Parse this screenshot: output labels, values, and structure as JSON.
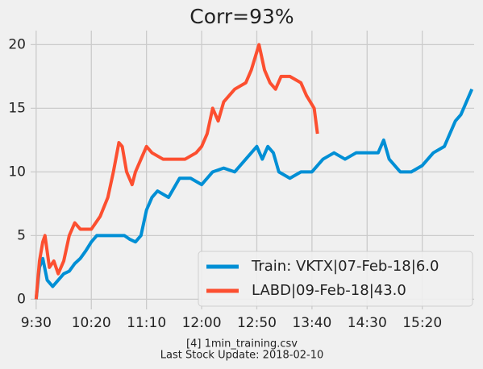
{
  "chart_data": {
    "type": "line",
    "title": "Corr=93%",
    "annotations": [
      "[4] 1min_training.csv",
      "Last Stock Update: 2018-02-10"
    ],
    "xlim": [
      565,
      967
    ],
    "ylim": [
      -0.8,
      21.1
    ],
    "xticks": [
      {
        "value": 570,
        "label": "9:30"
      },
      {
        "value": 620,
        "label": "10:20"
      },
      {
        "value": 670,
        "label": "11:10"
      },
      {
        "value": 720,
        "label": "12:00"
      },
      {
        "value": 770,
        "label": "12:50"
      },
      {
        "value": 820,
        "label": "13:40"
      },
      {
        "value": 870,
        "label": "14:30"
      },
      {
        "value": 920,
        "label": "15:20"
      }
    ],
    "yticks": [
      0,
      5,
      10,
      15,
      20
    ],
    "grid": true,
    "legend": "lower right",
    "series": [
      {
        "name": "Train: VKTX|07-Feb-18|6.0",
        "color": "#008fd5",
        "x": [
          570,
          573,
          576,
          580,
          585,
          590,
          595,
          600,
          605,
          610,
          615,
          620,
          625,
          630,
          640,
          650,
          655,
          660,
          665,
          670,
          675,
          680,
          690,
          700,
          710,
          720,
          730,
          740,
          750,
          760,
          770,
          775,
          780,
          785,
          790,
          800,
          810,
          820,
          830,
          840,
          850,
          860,
          870,
          880,
          885,
          890,
          900,
          910,
          920,
          930,
          940,
          945,
          950,
          955,
          960,
          965
        ],
        "values": [
          0,
          2.5,
          3.2,
          1.5,
          1,
          1.5,
          2,
          2.2,
          2.8,
          3.2,
          3.8,
          4.5,
          5,
          5,
          5,
          5,
          4.7,
          4.5,
          5,
          7,
          8,
          8.5,
          8,
          9.5,
          9.5,
          9,
          10,
          10.3,
          10,
          11,
          12,
          11,
          12,
          11.5,
          10,
          9.5,
          10,
          10,
          11,
          11.5,
          11,
          11.5,
          11.5,
          11.5,
          12.5,
          11,
          10,
          10,
          10.5,
          11.5,
          12,
          13,
          14,
          14.5,
          15.5,
          16.5
        ]
      },
      {
        "name": "LABD|09-Feb-18|43.0",
        "color": "#fc4f30",
        "x": [
          570,
          573,
          576,
          578,
          582,
          586,
          590,
          595,
          600,
          605,
          610,
          620,
          628,
          635,
          640,
          645,
          648,
          652,
          657,
          660,
          665,
          670,
          675,
          685,
          695,
          705,
          715,
          720,
          725,
          730,
          735,
          740,
          750,
          760,
          765,
          772,
          777,
          782,
          787,
          792,
          800,
          810,
          815,
          822,
          825
        ],
        "values": [
          0,
          3,
          4.5,
          5,
          2.5,
          3,
          2,
          3,
          5,
          6,
          5.5,
          5.5,
          6.5,
          8,
          10,
          12.3,
          12,
          10,
          9,
          10,
          11,
          12,
          11.5,
          11,
          11,
          11,
          11.5,
          12,
          13,
          15,
          14,
          15.5,
          16.5,
          17,
          18,
          20,
          18,
          17,
          16.5,
          17.5,
          17.5,
          17,
          16,
          15,
          13
        ]
      }
    ]
  }
}
